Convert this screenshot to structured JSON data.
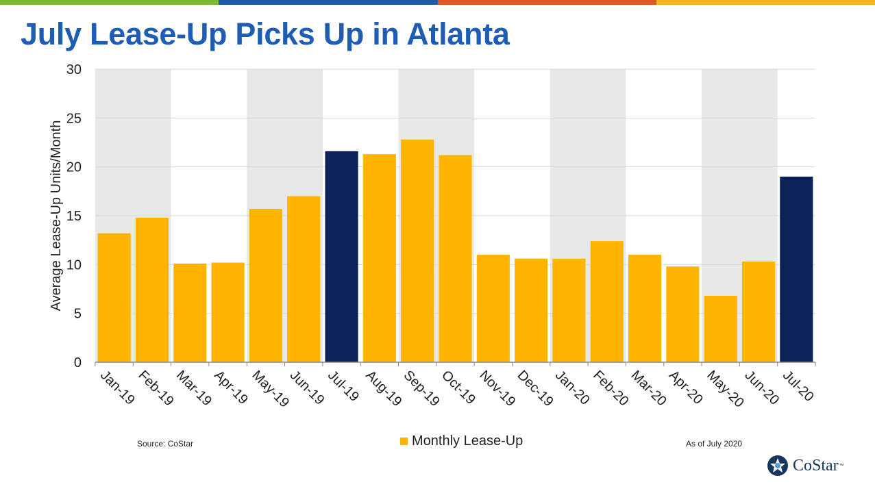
{
  "page": {
    "title": "July Lease-Up Picks Up in Atlanta",
    "source": "Source: CoStar",
    "as_of": "As of July 2020",
    "top_bar_colors": [
      "#7db82f",
      "#1e5aa8",
      "#e0561b",
      "#f5b41a"
    ]
  },
  "logo": {
    "name": "CoStar",
    "trademark": "™",
    "icon": "costar-star-icon"
  },
  "colors": {
    "bar": "#ffb500",
    "highlight": "#0c2158",
    "band": "#e8e8e8",
    "grid": "#d9d9d9"
  },
  "chart_data": {
    "type": "bar",
    "title": "July Lease-Up Picks Up in Atlanta",
    "ylabel": "Average Lease-Up Units/Month",
    "xlabel": "",
    "ylim": [
      0,
      30
    ],
    "yticks": [
      0,
      5,
      10,
      15,
      20,
      25,
      30
    ],
    "categories": [
      "Jan-19",
      "Feb-19",
      "Mar-19",
      "Apr-19",
      "May-19",
      "Jun-19",
      "Jul-19",
      "Aug-19",
      "Sep-19",
      "Oct-19",
      "Nov-19",
      "Dec-19",
      "Jan-20",
      "Feb-20",
      "Mar-20",
      "Apr-20",
      "May-20",
      "Jun-20",
      "Jul-20"
    ],
    "series": [
      {
        "name": "Monthly Lease-Up",
        "values": [
          13.2,
          14.8,
          10.1,
          10.2,
          15.7,
          17.0,
          21.6,
          21.3,
          22.8,
          21.2,
          11.0,
          10.6,
          10.6,
          12.4,
          11.0,
          9.8,
          6.8,
          10.3,
          19.0
        ]
      }
    ],
    "highlighted": [
      "Jul-19",
      "Jul-20"
    ],
    "shaded_bands": [
      [
        "Jan-19",
        "Feb-19"
      ],
      [
        "May-19",
        "Jun-19"
      ],
      [
        "Sep-19",
        "Oct-19"
      ],
      [
        "Jan-20",
        "Feb-20"
      ],
      [
        "May-20",
        "Jun-20"
      ]
    ],
    "grid": true,
    "legend": "bottom-center"
  }
}
